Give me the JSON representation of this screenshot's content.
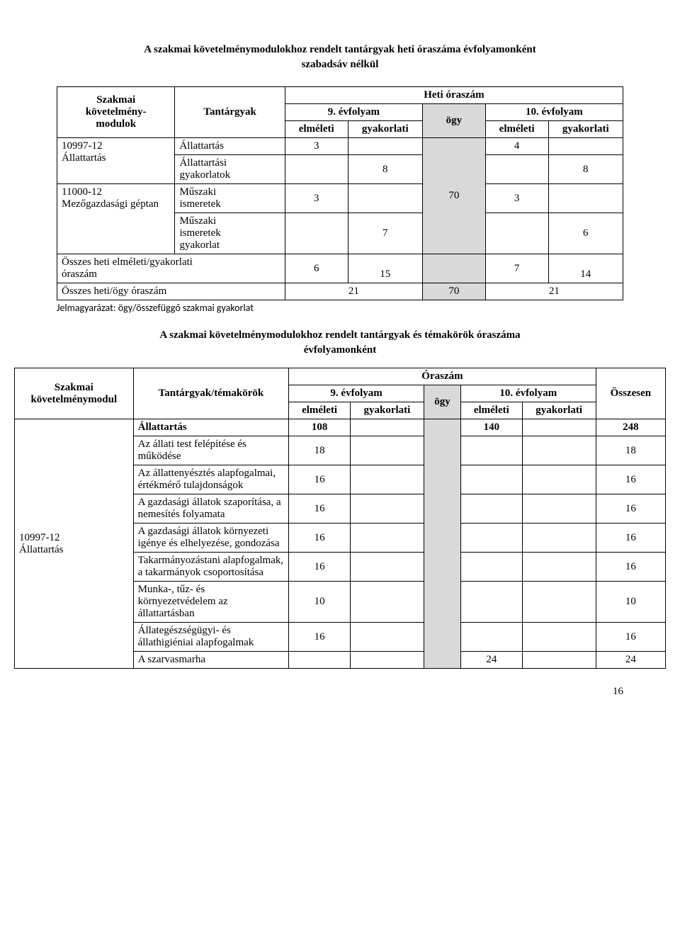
{
  "heading1_l1": "A szakmai követelménymodulokhoz rendelt tantárgyak heti óraszáma évfolyamonként",
  "heading1_l2": "szabadsáv nélkül",
  "t1": {
    "col_szakmai_l1": "Szakmai",
    "col_szakmai_l2": "követelmény-",
    "col_szakmai_l3": "modulok",
    "col_tantargyak": "Tantárgyak",
    "col_heti": "Heti óraszám",
    "col_9": "9. évfolyam",
    "col_10": "10. évfolyam",
    "col_elm": "elméleti",
    "col_gyak": "gyakorlati",
    "col_ogy": "ögy",
    "mod1": "10997-12\nÁllattartás",
    "mod2": "11000-12\nMezőgazdasági géptan",
    "r1_label": "Állattartás",
    "r1_9e": "3",
    "r1_10e": "4",
    "r2_label": "Állattartási\ngyakorlatok",
    "r2_9g": "8",
    "r2_10g": "8",
    "r3_label": "Műszaki\nismeretek",
    "r3_9e": "3",
    "r3_10e": "3",
    "r4_label": "Műszaki\nismeretek\ngyakorlat",
    "r4_9g": "7",
    "r4_10g": "6",
    "ogy_val": "70",
    "sum_eg_label": "Összes heti elméleti/gyakorlati\nóraszám",
    "sum_eg_9e": "6",
    "sum_eg_9g": "15",
    "sum_eg_10e": "7",
    "sum_eg_10g": "14",
    "sum_ho_label": "Összes heti/ögy óraszám",
    "sum_ho_9": "21",
    "sum_ho_ogy": "70",
    "sum_ho_10": "21"
  },
  "note_text": "Jelmagyarázat: ögy/összefüggő szakmai gyakorlat",
  "heading2_l1": "A szakmai követelménymodulokhoz rendelt tantárgyak és témakörök óraszáma",
  "heading2_l2": "évfolyamonként",
  "t2": {
    "col_szakmai_l1": "Szakmai",
    "col_szakmai_l2": "követelménymodul",
    "col_temakorok": "Tantárgyak/témakörök",
    "col_oraszam": "Óraszám",
    "col_osszesen": "Összesen",
    "col_9": "9. évfolyam",
    "col_10": "10. évfolyam",
    "col_elm": "elméleti",
    "col_gyak": "gyakorlati",
    "col_ogy": "ögy",
    "mod1": "10997-12\nÁllattartás",
    "rows": [
      {
        "label": "Állattartás",
        "e9": "108",
        "g9": "",
        "e10": "140",
        "g10": "",
        "sum": "248",
        "bold": true
      },
      {
        "label": "Az állati test felépítése és működése",
        "e9": "18",
        "g9": "",
        "e10": "",
        "g10": "",
        "sum": "18"
      },
      {
        "label": "Az állattenyésztés alapfogalmai, értékmérő tulajdonságok",
        "e9": "16",
        "g9": "",
        "e10": "",
        "g10": "",
        "sum": "16"
      },
      {
        "label": "A gazdasági állatok szaporítása, a nemesítés folyamata",
        "e9": "16",
        "g9": "",
        "e10": "",
        "g10": "",
        "sum": "16"
      },
      {
        "label": "A gazdasági állatok környezeti igénye és elhelyezése, gondozása",
        "e9": "16",
        "g9": "",
        "e10": "",
        "g10": "",
        "sum": "16"
      },
      {
        "label": "Takarmányozástani alapfogalmak, a takarmányok csoportosítása",
        "e9": "16",
        "g9": "",
        "e10": "",
        "g10": "",
        "sum": "16"
      },
      {
        "label": "Munka-, tűz- és környezetvédelem az állattartásban",
        "e9": "10",
        "g9": "",
        "e10": "",
        "g10": "",
        "sum": "10"
      },
      {
        "label": "Állategészségügyi- és állathigiéniai alapfogalmak",
        "e9": "16",
        "g9": "",
        "e10": "",
        "g10": "",
        "sum": "16"
      },
      {
        "label": "A szarvasmarha",
        "e9": "",
        "g9": "",
        "e10": "24",
        "g10": "",
        "sum": "24"
      }
    ]
  },
  "page_number": "16"
}
